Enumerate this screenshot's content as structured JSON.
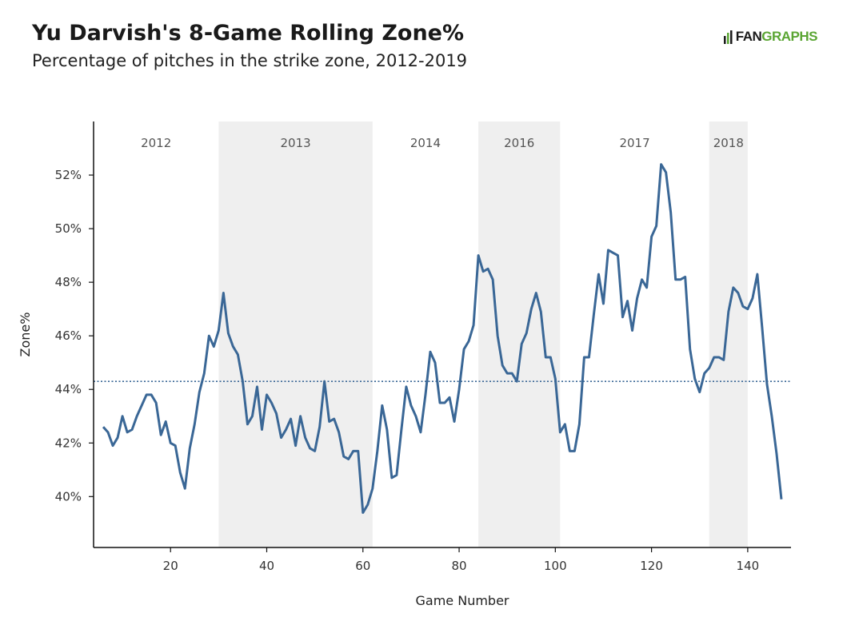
{
  "header": {
    "title": "Yu Darvish's 8-Game Rolling Zone%",
    "subtitle": "Percentage of pitches in the strike zone, 2012-2019"
  },
  "logo": {
    "part1": "FAN",
    "part2": "GRAPHS"
  },
  "colors": {
    "line": "#3a6796",
    "band": "#efefef",
    "average": "#3a6796",
    "logo_green": "#5aa532"
  },
  "chart_data": {
    "type": "line",
    "title": "Yu Darvish's 8-Game Rolling Zone%",
    "subtitle": "Percentage of pitches in the strike zone, 2012-2019",
    "xlabel": "Game Number",
    "ylabel": "Zone%",
    "xlim": [
      4,
      149
    ],
    "ylim": [
      38.1,
      54.0
    ],
    "x_ticks": [
      20,
      40,
      60,
      80,
      100,
      120,
      140
    ],
    "y_ticks": [
      40,
      42,
      44,
      46,
      48,
      50,
      52
    ],
    "y_tick_labels": [
      "40%",
      "42%",
      "44%",
      "46%",
      "48%",
      "50%",
      "52%"
    ],
    "grid": false,
    "average_line": 44.3,
    "season_bands": [
      {
        "label": "2012",
        "start": 4,
        "end": 30,
        "shaded": false
      },
      {
        "label": "2013",
        "start": 30,
        "end": 62,
        "shaded": true
      },
      {
        "label": "2014",
        "start": 62,
        "end": 84,
        "shaded": false
      },
      {
        "label": "2016",
        "start": 84,
        "end": 101,
        "shaded": true
      },
      {
        "label": "2017",
        "start": 101,
        "end": 132,
        "shaded": false
      },
      {
        "label": "2018",
        "start": 132,
        "end": 140,
        "shaded": true
      }
    ],
    "series": [
      {
        "x": [
          6,
          7,
          8,
          9,
          10,
          11,
          12,
          13,
          14,
          15,
          16,
          17,
          18,
          19,
          20,
          21,
          22,
          23,
          24,
          25,
          26,
          27,
          28,
          29,
          30,
          31,
          32,
          33,
          34,
          35,
          36,
          37,
          38,
          39,
          40,
          41,
          42,
          43,
          44,
          45,
          46,
          47,
          48,
          49,
          50,
          51,
          52,
          53,
          54,
          55,
          56,
          57,
          58,
          59,
          60,
          61,
          62,
          63,
          64,
          65,
          66,
          67,
          68,
          69,
          70,
          71,
          72,
          73,
          74,
          75,
          76,
          77,
          78,
          79,
          80,
          81,
          82,
          83,
          84,
          85,
          86,
          87,
          88,
          89,
          90,
          91,
          92,
          93,
          94,
          95,
          96,
          97,
          98,
          99,
          100,
          101,
          102,
          103,
          104,
          105,
          106,
          107,
          108,
          109,
          110,
          111,
          112,
          113,
          114,
          115,
          116,
          117,
          118,
          119,
          120,
          121,
          122,
          123,
          124,
          125,
          126,
          127,
          128,
          129,
          130,
          131,
          132,
          133,
          134,
          135,
          136,
          137,
          138,
          139,
          140,
          141,
          142,
          143,
          144,
          145,
          146,
          147
        ],
        "y": [
          42.6,
          42.4,
          41.9,
          42.2,
          43.0,
          42.4,
          42.5,
          43.0,
          43.4,
          43.8,
          43.8,
          43.5,
          42.3,
          42.8,
          42.0,
          41.9,
          40.9,
          40.3,
          41.8,
          42.7,
          43.9,
          44.6,
          46.0,
          45.6,
          46.2,
          47.6,
          46.1,
          45.6,
          45.3,
          44.3,
          42.7,
          43.0,
          44.1,
          42.5,
          43.8,
          43.5,
          43.1,
          42.2,
          42.5,
          42.9,
          41.9,
          43.0,
          42.2,
          41.8,
          41.7,
          42.6,
          44.3,
          42.8,
          42.9,
          42.4,
          41.5,
          41.4,
          41.7,
          41.7,
          39.4,
          39.7,
          40.3,
          41.7,
          43.4,
          42.5,
          40.7,
          40.8,
          42.5,
          44.1,
          43.4,
          43.0,
          42.4,
          43.8,
          45.4,
          45.0,
          43.5,
          43.5,
          43.7,
          42.8,
          44.0,
          45.5,
          45.8,
          46.4,
          49.0,
          48.4,
          48.5,
          48.1,
          46.0,
          44.9,
          44.6,
          44.6,
          44.3,
          45.7,
          46.1,
          47.0,
          47.6,
          46.9,
          45.2,
          45.2,
          44.4,
          42.4,
          42.7,
          41.7,
          41.7,
          42.7,
          45.2,
          45.2,
          46.8,
          48.3,
          47.2,
          49.2,
          49.1,
          49.0,
          46.7,
          47.3,
          46.2,
          47.4,
          48.1,
          47.8,
          49.7,
          50.1,
          52.4,
          52.1,
          50.6,
          48.1,
          48.1,
          48.2,
          45.5,
          44.4,
          43.9,
          44.6,
          44.8,
          45.2,
          45.2,
          45.1,
          46.9,
          47.8,
          47.6,
          47.1,
          47.0,
          47.4,
          48.3,
          46.3,
          44.2,
          43.0,
          41.6,
          39.9
        ]
      }
    ]
  }
}
